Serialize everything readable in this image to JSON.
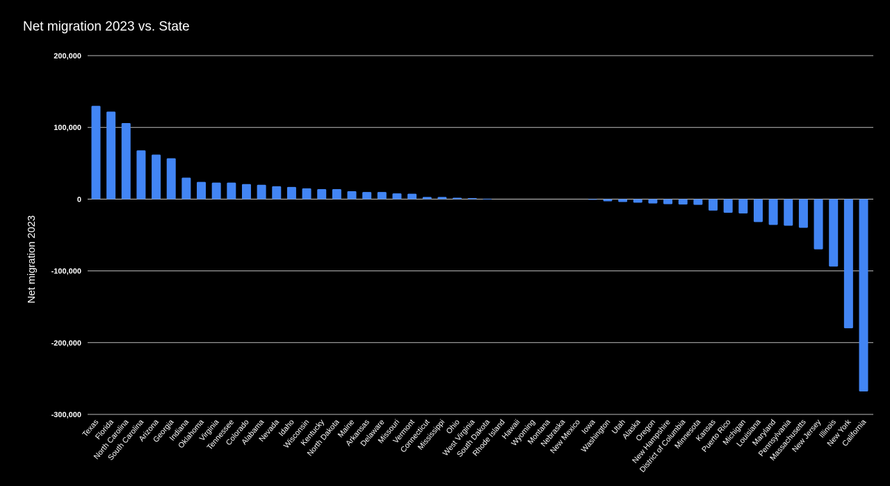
{
  "chart_data": {
    "type": "bar",
    "title": "Net migration 2023 vs. State",
    "xlabel": "",
    "ylabel": "Net migration 2023",
    "ylim": [
      -300000,
      200000
    ],
    "yticks": [
      {
        "value": 200000,
        "label": "200,000"
      },
      {
        "value": 100000,
        "label": "100,000"
      },
      {
        "value": 0,
        "label": "0"
      },
      {
        "value": -100000,
        "label": "-100,000"
      },
      {
        "value": -200000,
        "label": "-200,000"
      },
      {
        "value": -300000,
        "label": "-300,000"
      }
    ],
    "grid": true,
    "bar_color": "#4285F4",
    "categories": [
      "Texas",
      "Florida",
      "North Carolina",
      "South Carolina",
      "Arizona",
      "Georgia",
      "Indiana",
      "Oklahoma",
      "Virginia",
      "Tennessee",
      "Colorado",
      "Alabama",
      "Nevada",
      "Idaho",
      "Wisconsin",
      "Kentucky",
      "North Dakota",
      "Maine",
      "Arkansas",
      "Delaware",
      "Missouri",
      "Vermont",
      "Connecticut",
      "Mississippi",
      "Ohio",
      "West Virginia",
      "South Dakota",
      "Rhode Island",
      "Hawaii",
      "Wyoming",
      "Montana",
      "Nebraska",
      "New Mexico",
      "Iowa",
      "Washington",
      "Utah",
      "Alaska",
      "Oregon",
      "New Hampshire",
      "District of Columbia",
      "Minnesota",
      "Kansas",
      "Puerto Rico",
      "Michigan",
      "Louisiana",
      "Maryland",
      "Pennsylvania",
      "Massachusetts",
      "New Jersey",
      "Illinois",
      "New York",
      "California"
    ],
    "values": [
      130000,
      122000,
      106000,
      68000,
      62000,
      57000,
      30000,
      24000,
      23000,
      23000,
      21000,
      20000,
      18000,
      17000,
      15000,
      14000,
      14000,
      11000,
      10000,
      10000,
      8000,
      7500,
      3000,
      3000,
      2000,
      1500,
      500,
      0,
      0,
      0,
      0,
      0,
      0,
      -1000,
      -3000,
      -4000,
      -5000,
      -6000,
      -7000,
      -7500,
      -8000,
      -16000,
      -19000,
      -20000,
      -32000,
      -36000,
      -37000,
      -40000,
      -70000,
      -94000,
      -180000,
      -268000
    ]
  }
}
